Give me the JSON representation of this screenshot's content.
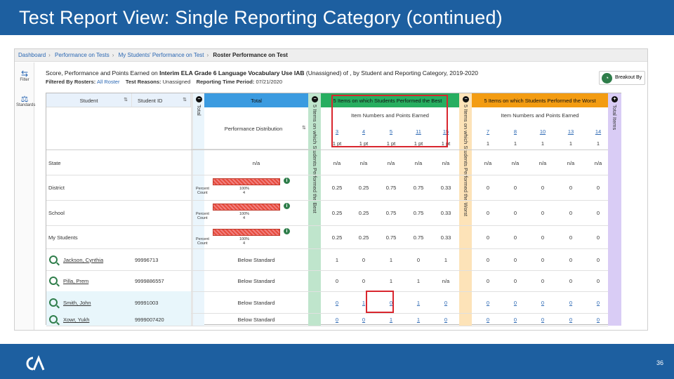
{
  "slide": {
    "title": "Test Report View: Single Reporting Category (continued)",
    "page_number": "36"
  },
  "breadcrumb": [
    {
      "label": "Dashboard",
      "current": false
    },
    {
      "label": "Performance on Tests",
      "current": false
    },
    {
      "label": "My Students' Performance on Test",
      "current": false
    },
    {
      "label": "Roster Performance on Test",
      "current": true
    }
  ],
  "sidebar": {
    "filter_label": "Filter",
    "standards_label": "Standards"
  },
  "report": {
    "heading_prefix": "Score, Performance and Points Earned on ",
    "heading_test": "Interim ELA Grade 6 Language Vocabulary Use IAB",
    "heading_suffix": " (Unassigned) of , by Student and Reporting Category, 2019-2020",
    "filter_label": "Filtered By Rosters:",
    "filter_value": "All Roster",
    "reasons_label": "Test Reasons:",
    "reasons_value": "Unassigned",
    "period_label": "Reporting Time Period:",
    "period_value": "07/21/2020",
    "breakout_label": "Breakout By"
  },
  "table": {
    "col_student": "Student",
    "col_student_id": "Student ID",
    "col_total_rot": "Total",
    "col_total": "Total",
    "perf_dist": "Performance Distribution",
    "best_rot": "5 Items on which Students Performed the Best",
    "best_header": "5 Items on which Students Performed the Best",
    "worst_rot": "5 Items on which Students Performed the Worst",
    "worst_header": "5 Items on which Students Performed the Worst",
    "items_pts": "Item Numbers and Points Earned",
    "total_items_rot": "Total Items",
    "best_items": [
      "3",
      "4",
      "5",
      "11",
      "15"
    ],
    "best_pts": [
      "1 pt",
      "1 pt",
      "1 pt",
      "1 pt",
      "1 pt"
    ],
    "worst_items": [
      "7",
      "8",
      "10",
      "13",
      "14"
    ],
    "worst_pts": [
      "1",
      "1",
      "1",
      "1",
      "1"
    ],
    "percent_label": "Percent",
    "count_label": "Count",
    "agg_rows": [
      {
        "name": "State",
        "total": "n/a",
        "best": [
          "n/a",
          "n/a",
          "n/a",
          "n/a",
          "n/a"
        ],
        "worst": [
          "n/a",
          "n/a",
          "n/a",
          "n/a",
          "n/a"
        ],
        "has_bar": false
      },
      {
        "name": "District",
        "total": "",
        "pct": "100%",
        "cnt": "4",
        "best": [
          "0.25",
          "0.25",
          "0.75",
          "0.75",
          "0.33"
        ],
        "worst": [
          "0",
          "0",
          "0",
          "0",
          "0"
        ],
        "has_bar": true
      },
      {
        "name": "School",
        "total": "",
        "pct": "100%",
        "cnt": "4",
        "best": [
          "0.25",
          "0.25",
          "0.75",
          "0.75",
          "0.33"
        ],
        "worst": [
          "0",
          "0",
          "0",
          "0",
          "0"
        ],
        "has_bar": true
      },
      {
        "name": "My Students",
        "total": "",
        "pct": "100%",
        "cnt": "4",
        "best": [
          "0.25",
          "0.25",
          "0.75",
          "0.75",
          "0.33"
        ],
        "worst": [
          "0",
          "0",
          "0",
          "0",
          "0"
        ],
        "has_bar": true
      }
    ],
    "students": [
      {
        "name": "Jackson, Cynthia",
        "id": "99996713",
        "level": "Below Standard",
        "best": [
          "1",
          "0",
          "1",
          "0",
          "1"
        ],
        "worst": [
          "0",
          "0",
          "0",
          "0",
          "0"
        ],
        "links": false
      },
      {
        "name": "Pilla, Prem",
        "id": "9999886557",
        "level": "Below Standard",
        "best": [
          "0",
          "0",
          "1",
          "1",
          "n/a"
        ],
        "worst": [
          "0",
          "0",
          "0",
          "0",
          "0"
        ],
        "links": false
      },
      {
        "name": "Smith, John",
        "id": "99991003",
        "level": "Below Standard",
        "best": [
          "0",
          "1",
          "0",
          "1",
          "0"
        ],
        "worst": [
          "0",
          "0",
          "0",
          "0",
          "0"
        ],
        "links": true
      },
      {
        "name": "Xowr, Yukh",
        "id": "9999007420",
        "level": "Below Standard",
        "best": [
          "0",
          "0",
          "1",
          "1",
          "0"
        ],
        "worst": [
          "0",
          "0",
          "0",
          "0",
          "0"
        ],
        "links": true
      }
    ]
  },
  "colors": {
    "slide_blue": "#1d5fa0",
    "total_blue": "#3b9be0",
    "best_green": "#27ae60",
    "worst_orange": "#f39c12",
    "purple": "#c9b3f0",
    "highlight_red": "#d9262e"
  }
}
